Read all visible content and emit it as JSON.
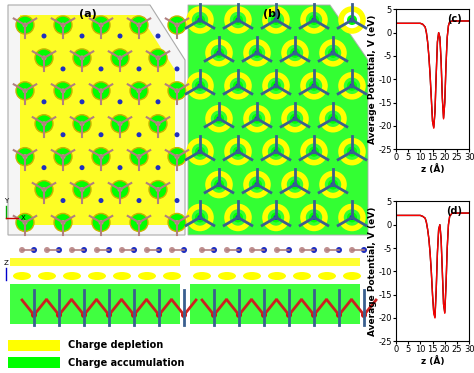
{
  "image_panels": {
    "labels": [
      "(a)",
      "(b)"
    ],
    "axis_labels": [
      "Y",
      "X",
      "Z"
    ],
    "legend": [
      {
        "name": "Charge depletion",
        "color": "#ffff00"
      },
      {
        "name": "Charge accumulation",
        "color": "#00ff00"
      }
    ]
  },
  "chart_data": [
    {
      "type": "line",
      "title": "(c)",
      "x_label": "z (Å)",
      "y_label": "Average Potential, V (eV)",
      "x": [
        0,
        2,
        4,
        6,
        8,
        10,
        11,
        12,
        12.5,
        13,
        13.5,
        14,
        14.5,
        15,
        15.5,
        16,
        16.5,
        17,
        17.5,
        18,
        18.5,
        19,
        19.5,
        20,
        20.5,
        21,
        21.5,
        22,
        23,
        25,
        27,
        30
      ],
      "series": [
        {
          "color": "#000000",
          "values": [
            2,
            2,
            2,
            2,
            2,
            2,
            1.8,
            1.2,
            0,
            -2,
            -5,
            -9,
            -14,
            -19,
            -20.3,
            -17,
            -9,
            -2,
            0,
            -1,
            -6,
            -14,
            -18.3,
            -15,
            -7,
            -1,
            1.5,
            2.3,
            2.5,
            2.5,
            2.5,
            2.5
          ]
        },
        {
          "color": "#ff0000",
          "values": [
            2,
            2,
            2,
            2,
            2,
            2,
            1.8,
            1.2,
            0,
            -2,
            -5,
            -9,
            -14,
            -19,
            -20.5,
            -17,
            -9,
            -2,
            0,
            -1,
            -6,
            -14,
            -18.5,
            -15,
            -7,
            -1,
            1.5,
            2.3,
            2.5,
            2.5,
            2.5,
            2.5
          ]
        }
      ],
      "xlim": [
        0,
        30
      ],
      "xticks": [
        0,
        5,
        10,
        15,
        20,
        25,
        30
      ],
      "ylim": [
        -25,
        5
      ],
      "yticks": [
        -25,
        -20,
        -15,
        -10,
        -5,
        0,
        5
      ]
    },
    {
      "type": "line",
      "title": "(d)",
      "x_label": "z (Å)",
      "y_label": "Average Potential, V (eV)",
      "x": [
        0,
        2,
        4,
        6,
        8,
        10,
        11,
        12,
        12.5,
        13,
        13.5,
        14,
        14.5,
        15,
        15.5,
        16,
        16.5,
        17,
        17.5,
        18,
        18.5,
        19,
        19.5,
        20,
        20.5,
        21,
        21.5,
        22,
        23,
        25,
        27,
        30
      ],
      "series": [
        {
          "color": "#000000",
          "values": [
            2,
            2,
            2,
            2,
            2,
            2,
            1.8,
            1.4,
            0.5,
            -1,
            -3,
            -6,
            -10,
            -15,
            -18.8,
            -19.8,
            -14,
            -6,
            -1,
            0,
            -3,
            -10,
            -17,
            -18.8,
            -13,
            -5,
            0,
            1.8,
            2.5,
            2.5,
            2.5,
            2.5
          ]
        },
        {
          "color": "#ff0000",
          "values": [
            2,
            2,
            2,
            2,
            2,
            2,
            1.8,
            1.4,
            0.5,
            -1,
            -3,
            -6,
            -10,
            -15,
            -19,
            -20,
            -14,
            -6,
            -1,
            0,
            -3,
            -10,
            -17,
            -19,
            -13,
            -5,
            0,
            1.8,
            2.5,
            2.5,
            2.5,
            2.5
          ]
        }
      ],
      "xlim": [
        0,
        30
      ],
      "xticks": [
        0,
        5,
        10,
        15,
        20,
        25,
        30
      ],
      "ylim": [
        -25,
        5
      ],
      "yticks": [
        -25,
        -20,
        -15,
        -10,
        -5,
        0,
        5
      ]
    }
  ]
}
